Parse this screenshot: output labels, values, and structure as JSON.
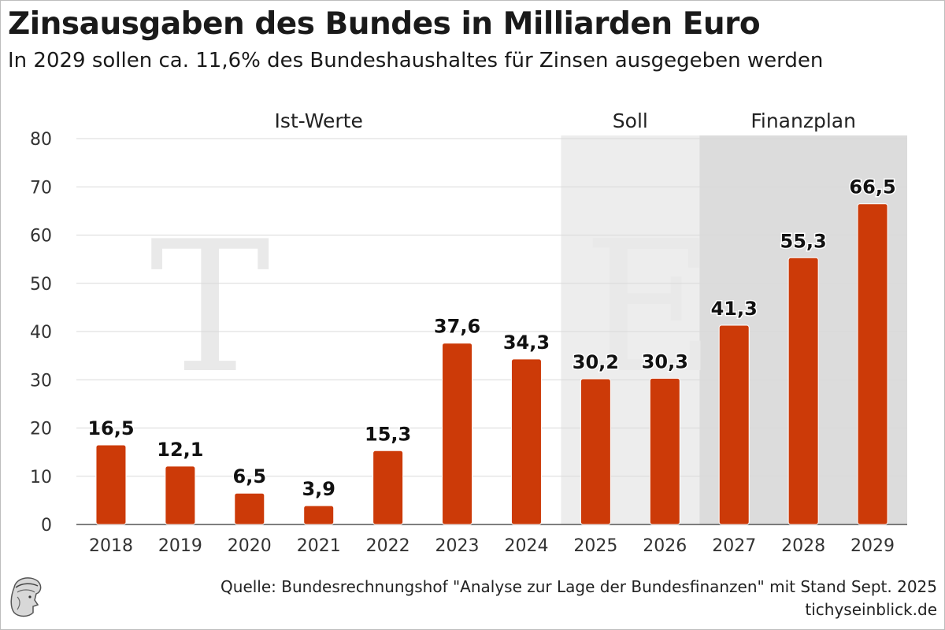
{
  "header": {
    "title": "Zinsausgaben des Bundes in Milliarden Euro",
    "subtitle": "In 2029 sollen ca. 11,6% des Bundeshaushaltes für Zinsen ausgegeben werden"
  },
  "footer": {
    "source": "Quelle: Bundesrechnungshof \"Analyse zur Lage der Bundesfinanzen\" mit Stand Sept. 2025",
    "site": "tichyseinblick.de"
  },
  "colors": {
    "bar": "#cc3a08",
    "grid": "#d9d9d9",
    "soll_band": "#ededed",
    "finanzplan_band": "#dcdcdc"
  },
  "chart_data": {
    "type": "bar",
    "title": "Zinsausgaben des Bundes in Milliarden Euro",
    "xlabel": "",
    "ylabel": "",
    "categories": [
      "2018",
      "2019",
      "2020",
      "2021",
      "2022",
      "2023",
      "2024",
      "2025",
      "2026",
      "2027",
      "2028",
      "2029"
    ],
    "values": [
      16.5,
      12.1,
      6.5,
      3.9,
      15.3,
      37.6,
      34.3,
      30.2,
      30.3,
      41.3,
      55.3,
      66.5
    ],
    "value_labels": [
      "16,5",
      "12,1",
      "6,5",
      "3,9",
      "15,3",
      "37,6",
      "34,3",
      "30,2",
      "30,3",
      "41,3",
      "55,3",
      "66,5"
    ],
    "ylim": [
      0,
      80
    ],
    "yticks": [
      0,
      10,
      20,
      30,
      40,
      50,
      60,
      70,
      80
    ],
    "grid": true,
    "sections": [
      {
        "label": "Ist-Werte",
        "from": "2018",
        "to": "2024",
        "shaded": false
      },
      {
        "label": "Soll",
        "from": "2025",
        "to": "2026",
        "shaded": true
      },
      {
        "label": "Finanzplan",
        "from": "2027",
        "to": "2029",
        "shaded": true
      }
    ]
  }
}
